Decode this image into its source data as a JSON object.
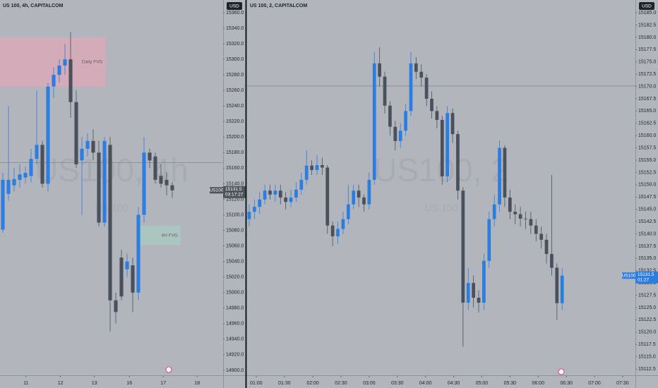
{
  "chart_data": [
    {
      "type": "candlestick",
      "title": "US 100, 4h, CAPITALCOM",
      "currency": "USD",
      "watermark": "US100, 4h",
      "watermark_sub": "US 100",
      "up_color": "#2a7de1",
      "down_color": "#4a505c",
      "open": [
        15081,
        15127,
        15138,
        15145,
        15148,
        15150,
        15172,
        15190,
        15140,
        15265,
        15280,
        15292,
        15300,
        15245,
        15170,
        15185,
        15195,
        15180,
        15090,
        15190,
        14990,
        15045,
        15030,
        15035,
        15000,
        15100,
        15180,
        15175,
        15150,
        15145,
        15138
      ],
      "high": [
        15154,
        15240,
        15160,
        15165,
        15162,
        15185,
        15260,
        15195,
        15270,
        15290,
        15300,
        15320,
        15335,
        15260,
        15200,
        15205,
        15210,
        15195,
        15200,
        15200,
        15000,
        15055,
        15050,
        15045,
        15110,
        15200,
        15185,
        15180,
        15165,
        15155,
        15142
      ],
      "low": [
        15077,
        15118,
        15130,
        15135,
        15140,
        15142,
        15165,
        15135,
        15130,
        15250,
        15270,
        15280,
        15225,
        15160,
        15100,
        15175,
        15170,
        15085,
        15085,
        14950,
        14960,
        14990,
        15020,
        14975,
        14990,
        15090,
        15160,
        15140,
        15135,
        15125,
        15122
      ],
      "close": [
        15145,
        15145,
        15146,
        15152,
        15154,
        15172,
        15190,
        15140,
        15265,
        15280,
        15292,
        15300,
        15245,
        15165,
        15185,
        15195,
        15180,
        15090,
        15195,
        14990,
        14975,
        14995,
        15040,
        15000,
        15100,
        15180,
        15170,
        15145,
        15140,
        15138,
        15131.5
      ],
      "xlim": [
        -0.5,
        39
      ],
      "xticks": [
        {
          "value": 4.1,
          "label": "11"
        },
        {
          "value": 10.2,
          "label": "12"
        },
        {
          "value": 16.2,
          "label": "13"
        },
        {
          "value": 22.4,
          "label": "16"
        },
        {
          "value": 28.4,
          "label": "17"
        },
        {
          "value": 34.4,
          "label": "18"
        }
      ],
      "ylim": [
        14895.4,
        15376.3
      ],
      "yticks": [
        {
          "value": 14900,
          "label": "14900.0"
        },
        {
          "value": 14920,
          "label": "14920.0"
        },
        {
          "value": 14940,
          "label": "14940.0"
        },
        {
          "value": 14960,
          "label": "14960.0"
        },
        {
          "value": 14980,
          "label": "14980.0"
        },
        {
          "value": 15000,
          "label": "15000.0"
        },
        {
          "value": 15020,
          "label": "15020.0"
        },
        {
          "value": 15040,
          "label": "15040.0"
        },
        {
          "value": 15060,
          "label": "15060.0"
        },
        {
          "value": 15080,
          "label": "15080.0"
        },
        {
          "value": 15100,
          "label": "15100.0"
        },
        {
          "value": 15120,
          "label": "15120.0"
        },
        {
          "value": 15140,
          "label": "15140.0"
        },
        {
          "value": 15160,
          "label": "15160.0"
        },
        {
          "value": 15180,
          "label": "15180.0"
        },
        {
          "value": 15200,
          "label": "15200.0"
        },
        {
          "value": 15220,
          "label": "15220.0"
        },
        {
          "value": 15240,
          "label": "15240.0"
        },
        {
          "value": 15260,
          "label": "15260.0"
        },
        {
          "value": 15280,
          "label": "15280.0"
        },
        {
          "value": 15300,
          "label": "15300.0"
        },
        {
          "value": 15320,
          "label": "15320.0"
        },
        {
          "value": 15340,
          "label": "15340.0"
        },
        {
          "value": 15360,
          "label": "15360.0"
        }
      ],
      "zones": [
        {
          "label": "Daily FVG",
          "top": 15328,
          "bottom": 15265,
          "start": -0.5,
          "end": 18.2,
          "color": "#f0a3b4"
        },
        {
          "label": "4H FVG",
          "top": 15086,
          "bottom": 15061,
          "start": 24,
          "end": 31.5,
          "color": "#a6d4c4"
        }
      ],
      "hline": 15167,
      "symbol": "US100",
      "last_price": 15131.5,
      "countdown": "03:17:27",
      "tag_color": "#50535e"
    },
    {
      "type": "candlestick",
      "title": "US 100, 2, CAPITALCOM",
      "currency": "USD",
      "watermark": "US100, 2",
      "watermark_sub": "US 100",
      "up_color": "#2a7de1",
      "down_color": "#4a505c",
      "open": [
        15143,
        15144.5,
        15145.5,
        15147,
        15148.8,
        15148,
        15148.8,
        15147.4,
        15146.5,
        15147.4,
        15149,
        15151,
        15153.9,
        15153,
        15154,
        15153.5,
        15141.7,
        15139.5,
        15141,
        15143,
        15146,
        15148.8,
        15147.4,
        15146,
        15151,
        15174.7,
        15172,
        15166.1,
        15161.8,
        15158.9,
        15161,
        15165,
        15174.7,
        15173,
        15171.8,
        15167.5,
        15165,
        15163.2,
        15151.7,
        15164.6,
        15160.3,
        15148.8,
        15126,
        15130,
        15127,
        15126,
        15134.5,
        15143,
        15146,
        15157.5,
        15147.4,
        15144.5,
        15144,
        15143.1,
        15143,
        15141.7,
        15140,
        15138.8,
        15135.9,
        15133.1,
        15125.9
      ],
      "high": [
        15146,
        15147,
        15148.5,
        15150,
        15150,
        15150,
        15150,
        15148.5,
        15149,
        15150.5,
        15152.5,
        15157,
        15155,
        15156,
        15155.5,
        15154,
        15142.5,
        15142.5,
        15144.5,
        15150,
        15150,
        15150,
        15148,
        15152.5,
        15177,
        15178,
        15173,
        15167,
        15163,
        15162.5,
        15166.5,
        15177,
        15176,
        15174.5,
        15172.5,
        15169,
        15166,
        15164,
        15166,
        15165.5,
        15161,
        15149.5,
        15133,
        15131.5,
        15128.5,
        15136,
        15144.5,
        15148,
        15159,
        15158,
        15149,
        15146,
        15145.5,
        15144.5,
        15144.5,
        15143,
        15141.5,
        15140,
        15152,
        15134,
        15133
      ],
      "low": [
        15141.5,
        15143,
        15144,
        15146,
        15147,
        15146.5,
        15146,
        15145,
        15145.5,
        15146.5,
        15148,
        15150,
        15152,
        15152,
        15152,
        15140,
        15137.5,
        15138,
        15140,
        15142,
        15145,
        15145.5,
        15144.5,
        15145,
        15150,
        15170,
        15164.5,
        15160,
        15157,
        15157.5,
        15160,
        15164,
        15171.5,
        15170,
        15166,
        15163.5,
        15161.5,
        15150,
        15150.5,
        15158.5,
        15147,
        15117,
        15124.5,
        15125,
        15124,
        15124.5,
        15133,
        15141.5,
        15144.5,
        15145.5,
        15143,
        15142,
        15141.5,
        15141,
        15140,
        15138.5,
        15137,
        15134,
        15131.5,
        15122.5,
        15124.5
      ],
      "close": [
        15144.5,
        15145.5,
        15147,
        15148.8,
        15148,
        15148.8,
        15147.4,
        15146.5,
        15147.4,
        15149,
        15151,
        15153.9,
        15153,
        15154,
        15153.5,
        15141.7,
        15139.5,
        15141,
        15143,
        15146,
        15148.8,
        15147.4,
        15146,
        15151,
        15174.7,
        15172,
        15166.1,
        15161.8,
        15158.9,
        15161,
        15165,
        15174.7,
        15173,
        15171.8,
        15167.5,
        15165,
        15163.2,
        15151.7,
        15164.6,
        15160.3,
        15148.8,
        15126,
        15130,
        15127,
        15126,
        15134.5,
        15143,
        15146,
        15157.5,
        15147.4,
        15144.5,
        15144,
        15143.1,
        15143,
        15141.7,
        15140,
        15138.8,
        15135.9,
        15133.1,
        15125.9,
        15131.5
      ],
      "xlim": [
        -0.4,
        74.05
      ],
      "xticks": [
        {
          "value": 1.35,
          "label": "01:00"
        },
        {
          "value": 6.76,
          "label": "01:30"
        },
        {
          "value": 12.2,
          "label": "02:00"
        },
        {
          "value": 17.6,
          "label": "02:30"
        },
        {
          "value": 23.0,
          "label": "03:00"
        },
        {
          "value": 28.4,
          "label": "03:30"
        },
        {
          "value": 33.8,
          "label": "04:00"
        },
        {
          "value": 39.2,
          "label": "04:30"
        },
        {
          "value": 44.6,
          "label": "05:00"
        },
        {
          "value": 50.0,
          "label": "05:30"
        },
        {
          "value": 55.4,
          "label": "06:00"
        },
        {
          "value": 60.8,
          "label": "06:30"
        },
        {
          "value": 66.2,
          "label": "07:00"
        },
        {
          "value": 71.6,
          "label": "07:30"
        }
      ],
      "ylim": [
        15111.5,
        15187.6
      ],
      "yticks": [
        15112.5,
        15115,
        15117.5,
        15120,
        15122.5,
        15125,
        15127.5,
        15130,
        15132.5,
        15135,
        15137.5,
        15140,
        15142.5,
        15145,
        15147.5,
        15150,
        15152.5,
        15155,
        15157.5,
        15160,
        15162.5,
        15165,
        15167.5,
        15170,
        15172.5,
        15175,
        15177.5,
        15180,
        15182.5,
        15185
      ],
      "ytick_labels": [
        "15112.5",
        "15115.0",
        "15117.5",
        "15120.0",
        "15122.5",
        "15125.0",
        "15127.5",
        "15130.0",
        "15132.5",
        "15135.0",
        "15137.5",
        "15140.0",
        "15142.5",
        "15145.0",
        "15147.5",
        "15150.0",
        "15152.5",
        "15155.0",
        "15157.5",
        "15160.0",
        "15162.5",
        "15165.0",
        "15167.5",
        "15170.0",
        "15172.5",
        "15175.0",
        "15177.5",
        "15180.0",
        "15182.5",
        "15185.0"
      ],
      "zones": [],
      "hline": 15170.1,
      "symbol": "US100",
      "last_price": 15131.5,
      "countdown": "01:27",
      "tag_color": "#2a7de1"
    }
  ]
}
